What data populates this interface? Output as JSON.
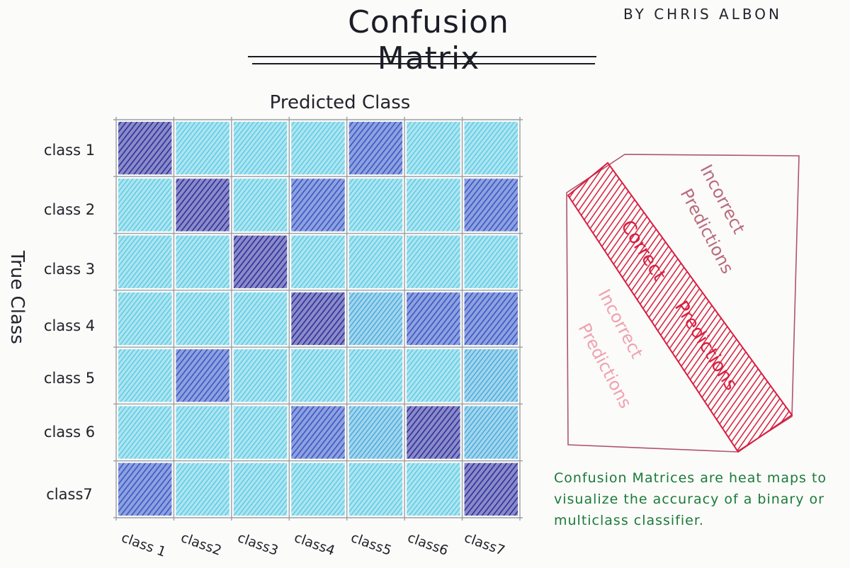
{
  "header": {
    "title": "Confusion Matrix",
    "author": "BY CHRIS ALBON"
  },
  "matrix": {
    "x_axis_title": "Predicted Class",
    "y_axis_title": "True Class",
    "row_labels": [
      "class 1",
      "class 2",
      "class 3",
      "class 4",
      "class 5",
      "class 6",
      "class7"
    ],
    "col_labels": [
      "class 1",
      "class2",
      "class3",
      "class4",
      "class5",
      "class6",
      "class7"
    ],
    "intensity": [
      [
        4,
        1,
        1,
        1,
        3,
        1,
        1
      ],
      [
        1,
        4,
        1,
        3,
        1,
        1,
        3
      ],
      [
        1,
        1,
        4,
        1,
        1,
        1,
        1
      ],
      [
        1,
        1,
        1,
        4,
        2,
        3,
        3
      ],
      [
        1,
        3,
        1,
        1,
        1,
        1,
        2
      ],
      [
        1,
        1,
        1,
        3,
        2,
        4,
        2
      ],
      [
        3,
        1,
        1,
        1,
        1,
        1,
        4
      ]
    ],
    "colors": {
      "level_1": "#4fc9e4",
      "level_2": "#3aa6dc",
      "level_3": "#3658c8",
      "level_4": "#2d2f9e"
    }
  },
  "inset": {
    "upper_label": [
      "Incorrect",
      "Predictions"
    ],
    "diagonal_label": [
      "Correct",
      "Predictions"
    ],
    "lower_label": [
      "Incorrect",
      "Predictions"
    ],
    "colors": {
      "border": "#b0546a",
      "band": "#d81e40",
      "upper_text": "#b86b7d",
      "lower_text": "#efa2b0"
    }
  },
  "note": {
    "text": "Confusion Matrices are heat maps to visualize the accuracy of a binary or multiclass classifier.",
    "color": "#1b7a3a"
  }
}
